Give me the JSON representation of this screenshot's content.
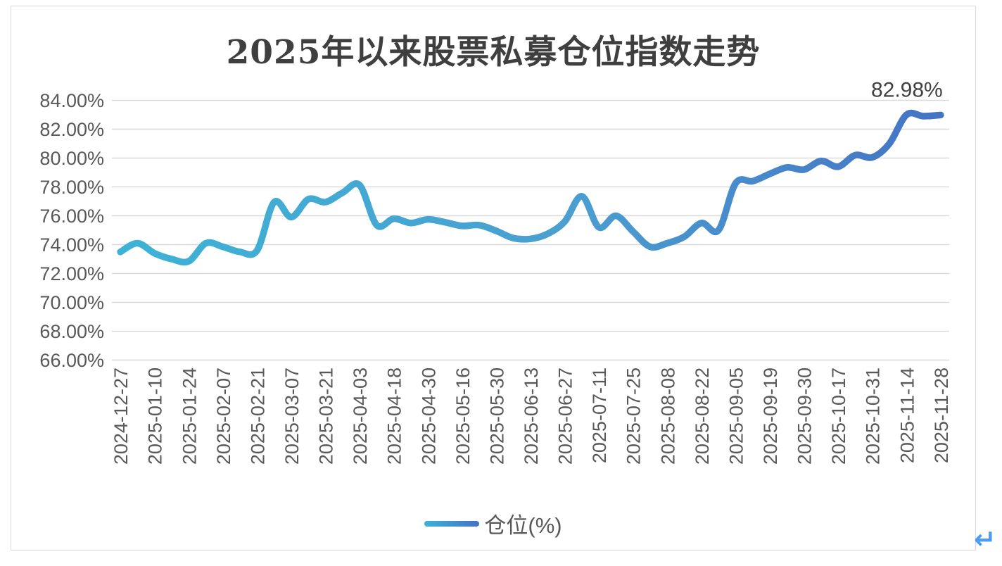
{
  "page": {
    "return_mark": "↵"
  },
  "legend": {
    "label": "仓位(%)"
  },
  "chart_data": {
    "type": "line",
    "title": "2025年以来股票私募仓位指数走势",
    "series": [
      {
        "name": "仓位(%)",
        "values": [
          73.5,
          74.1,
          73.4,
          73.0,
          72.85,
          74.1,
          73.85,
          73.5,
          73.6,
          76.95,
          75.9,
          77.15,
          76.95,
          77.6,
          78.12,
          75.35,
          75.8,
          75.5,
          75.75,
          75.55,
          75.3,
          75.35,
          74.95,
          74.45,
          74.4,
          74.75,
          75.6,
          77.35,
          75.2,
          76.0,
          74.9,
          73.85,
          74.1,
          74.55,
          75.5,
          75.0,
          78.25,
          78.4,
          78.9,
          79.35,
          79.2,
          79.8,
          79.4,
          80.2,
          80.05,
          81.0,
          83.0,
          82.9,
          82.98
        ]
      }
    ],
    "tick_labels": [
      "2024-12-27",
      "2025-01-10",
      "2025-01-24",
      "2025-02-07",
      "2025-02-21",
      "2025-03-07",
      "2025-03-21",
      "2025-04-03",
      "2025-04-18",
      "2025-04-30",
      "2025-05-16",
      "2025-05-30",
      "2025-06-13",
      "2025-06-27",
      "2025-07-11",
      "2025-07-25",
      "2025-08-08",
      "2025-08-22",
      "2025-09-05",
      "2025-09-19",
      "2025-09-30",
      "2025-10-17",
      "2025-10-31",
      "2025-11-14",
      "2025-11-28"
    ],
    "label_every": 2,
    "y_tick_labels": [
      "84.00%",
      "82.00%",
      "80.00%",
      "78.00%",
      "76.00%",
      "74.00%",
      "72.00%",
      "70.00%",
      "68.00%",
      "66.00%"
    ],
    "ylim": [
      66,
      84
    ],
    "ytick_step": 2,
    "last_point_label": "82.98%",
    "grid": true,
    "legend_position": "bottom",
    "xlabel": "",
    "ylabel": ""
  },
  "colors": {
    "line_gradient_start": "#3db3d6",
    "line_gradient_mid": "#4a9fd0",
    "line_gradient_end": "#4472c4",
    "gridline": "#d9d9d9",
    "axis_text": "#595959",
    "title_text": "#3f3f3f",
    "data_label_text": "#404040",
    "frame_border": "#d9d9d9",
    "return_mark": "#4d9bf7",
    "background": "#ffffff"
  }
}
